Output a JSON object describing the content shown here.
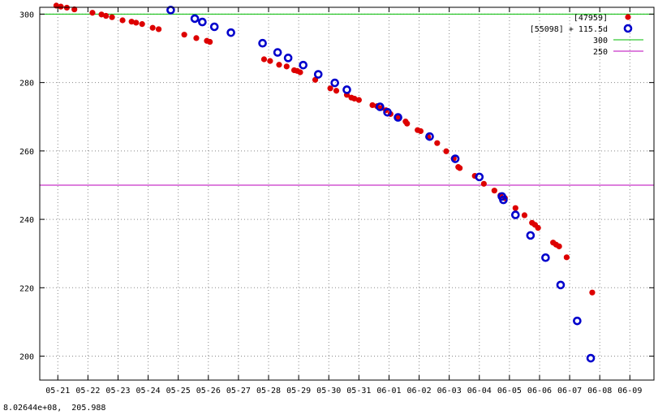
{
  "coord_readout": "8.02644e+08,  205.988",
  "chart_data": {
    "type": "scatter",
    "title": "",
    "xlabel": "",
    "ylabel": "",
    "xlim": [
      20.4,
      40.8
    ],
    "ylim": [
      193,
      302
    ],
    "grid": true,
    "legend_position": "top-right",
    "x_ticks": [
      {
        "x": 21,
        "label": "05-21"
      },
      {
        "x": 22,
        "label": "05-22"
      },
      {
        "x": 23,
        "label": "05-23"
      },
      {
        "x": 24,
        "label": "05-24"
      },
      {
        "x": 25,
        "label": "05-25"
      },
      {
        "x": 26,
        "label": "05-26"
      },
      {
        "x": 27,
        "label": "05-27"
      },
      {
        "x": 28,
        "label": "05-28"
      },
      {
        "x": 29,
        "label": "05-29"
      },
      {
        "x": 30,
        "label": "05-30"
      },
      {
        "x": 31,
        "label": "05-31"
      },
      {
        "x": 32,
        "label": "06-01"
      },
      {
        "x": 33,
        "label": "06-02"
      },
      {
        "x": 34,
        "label": "06-03"
      },
      {
        "x": 35,
        "label": "06-04"
      },
      {
        "x": 36,
        "label": "06-05"
      },
      {
        "x": 37,
        "label": "06-06"
      },
      {
        "x": 38,
        "label": "06-07"
      },
      {
        "x": 39,
        "label": "06-08"
      },
      {
        "x": 40,
        "label": "06-09"
      }
    ],
    "y_ticks": [
      200,
      220,
      240,
      260,
      280,
      300
    ],
    "series": [
      {
        "name": "[47959]",
        "marker": "filled-circle",
        "color": "#dd0000",
        "points": [
          [
            20.95,
            302.5
          ],
          [
            21.1,
            302.2
          ],
          [
            21.3,
            301.9
          ],
          [
            21.55,
            301.4
          ],
          [
            22.15,
            300.4
          ],
          [
            22.45,
            299.9
          ],
          [
            22.6,
            299.5
          ],
          [
            22.8,
            299.1
          ],
          [
            23.15,
            298.2
          ],
          [
            23.45,
            297.8
          ],
          [
            23.6,
            297.5
          ],
          [
            23.8,
            297.1
          ],
          [
            24.15,
            296.0
          ],
          [
            24.35,
            295.6
          ],
          [
            25.2,
            294.0
          ],
          [
            25.6,
            293.0
          ],
          [
            25.95,
            292.2
          ],
          [
            26.05,
            291.9
          ],
          [
            27.85,
            286.8
          ],
          [
            28.05,
            286.3
          ],
          [
            28.35,
            285.2
          ],
          [
            28.6,
            284.7
          ],
          [
            28.85,
            283.6
          ],
          [
            28.95,
            283.4
          ],
          [
            29.05,
            283.0
          ],
          [
            29.55,
            280.8
          ],
          [
            30.05,
            278.3
          ],
          [
            30.25,
            277.6
          ],
          [
            30.6,
            276.4
          ],
          [
            30.75,
            275.6
          ],
          [
            30.85,
            275.3
          ],
          [
            31.0,
            274.9
          ],
          [
            31.45,
            273.4
          ],
          [
            31.6,
            273.1
          ],
          [
            31.75,
            272.6
          ],
          [
            31.9,
            271.9
          ],
          [
            32.05,
            270.8
          ],
          [
            32.3,
            269.9
          ],
          [
            32.55,
            268.6
          ],
          [
            32.6,
            268.0
          ],
          [
            32.95,
            266.1
          ],
          [
            33.05,
            265.8
          ],
          [
            33.3,
            264.1
          ],
          [
            33.6,
            262.3
          ],
          [
            33.9,
            259.9
          ],
          [
            34.15,
            257.8
          ],
          [
            34.3,
            255.3
          ],
          [
            34.35,
            255.0
          ],
          [
            34.85,
            252.7
          ],
          [
            35.15,
            250.4
          ],
          [
            35.5,
            248.4
          ],
          [
            35.7,
            247.0
          ],
          [
            35.85,
            246.2
          ],
          [
            36.2,
            243.3
          ],
          [
            36.5,
            241.2
          ],
          [
            36.75,
            239.0
          ],
          [
            36.85,
            238.4
          ],
          [
            36.95,
            237.5
          ],
          [
            37.45,
            233.2
          ],
          [
            37.55,
            232.6
          ],
          [
            37.65,
            232.1
          ],
          [
            37.9,
            228.9
          ],
          [
            38.75,
            218.6
          ]
        ]
      },
      {
        "name": "[55098] + 115.5d",
        "marker": "open-circle",
        "color": "#0000cc",
        "points": [
          [
            24.75,
            301.2
          ],
          [
            25.55,
            298.7
          ],
          [
            25.8,
            297.7
          ],
          [
            26.2,
            296.3
          ],
          [
            26.75,
            294.6
          ],
          [
            27.8,
            291.5
          ],
          [
            28.3,
            288.8
          ],
          [
            28.65,
            287.2
          ],
          [
            29.15,
            285.1
          ],
          [
            29.65,
            282.4
          ],
          [
            30.2,
            279.9
          ],
          [
            30.6,
            277.9
          ],
          [
            31.7,
            272.9
          ],
          [
            31.95,
            271.3
          ],
          [
            32.3,
            269.8
          ],
          [
            33.35,
            264.2
          ],
          [
            34.2,
            257.7
          ],
          [
            35.0,
            252.4
          ],
          [
            35.75,
            246.7
          ],
          [
            35.8,
            245.7
          ],
          [
            36.2,
            241.3
          ],
          [
            36.7,
            235.3
          ],
          [
            37.2,
            228.8
          ],
          [
            37.7,
            220.8
          ],
          [
            38.25,
            210.3
          ],
          [
            38.7,
            199.4
          ]
        ]
      }
    ],
    "lines": [
      {
        "name": "300",
        "y": 300,
        "color": "#00bb00"
      },
      {
        "name": "250",
        "y": 250,
        "color": "#bb00bb"
      }
    ]
  }
}
